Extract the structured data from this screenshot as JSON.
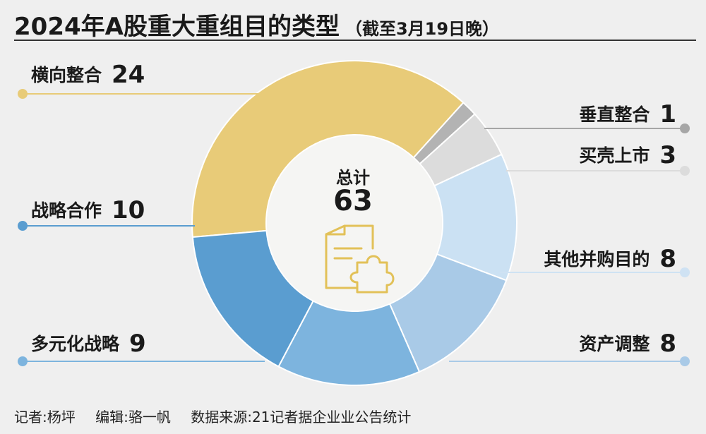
{
  "title": "2024年A股重大重组目的类型",
  "subtitle": "（截至3月19日晚）",
  "center": {
    "label": "总计",
    "value": "63",
    "icon": "document-puzzle-icon"
  },
  "footer": {
    "reporter": "记者:杨坪",
    "editor": "编辑:骆一帆",
    "source": "数据来源:21记者据企业业公告统计"
  },
  "chart_data": {
    "type": "pie",
    "title": "2024年A股重大重组目的类型",
    "subtitle": "（截至3月19日晚）",
    "total": 63,
    "slices": [
      {
        "name": "横向整合",
        "value": 24,
        "color": "#e8cb78",
        "side": "left"
      },
      {
        "name": "垂直整合",
        "value": 1,
        "color": "#b3b3b3",
        "side": "right"
      },
      {
        "name": "买壳上市",
        "value": 3,
        "color": "#dcdcdc",
        "side": "right"
      },
      {
        "name": "其他并购目的",
        "value": 8,
        "color": "#cbe1f3",
        "side": "right"
      },
      {
        "name": "资产调整",
        "value": 8,
        "color": "#a9cae7",
        "side": "right"
      },
      {
        "name": "多元化战略",
        "value": 9,
        "color": "#7db4de",
        "side": "left"
      },
      {
        "name": "战略合作",
        "value": 10,
        "color": "#5a9dd0",
        "side": "left"
      }
    ],
    "dot_colors": [
      "#e8cb78",
      "#a6a6a6",
      "#dcdcdc",
      "#cfe2f3",
      "#a9cae7",
      "#7db4de",
      "#5a9dd0"
    ]
  }
}
